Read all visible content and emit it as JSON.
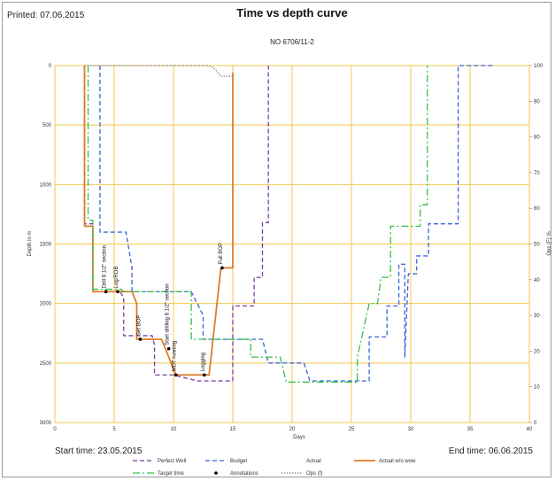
{
  "header": {
    "printed": "Printed: 07.06.2015",
    "title": "Time vs depth curve",
    "subtitle": "NO 6706/11-2"
  },
  "footer": {
    "start_time": "Start time: 23.05.2015",
    "end_time": "End time: 06.06.2015"
  },
  "colors": {
    "perfect_well": "#7a3fa0",
    "budget": "#3a63d8",
    "actual": "#e07b2a",
    "target_time": "#35c04a",
    "ops": "#888888",
    "grid": "#f2c94c",
    "annotation_dot": "#000000"
  },
  "chart_data": {
    "type": "line",
    "title": "Time vs depth curve",
    "subtitle": "NO 6706/11-2",
    "xlabel": "Days",
    "ylabel": "Depth in m",
    "y2label": "Ops (F) %",
    "xlim": [
      0,
      40
    ],
    "ylim": [
      0,
      3000
    ],
    "y_inverted": true,
    "y2lim": [
      0,
      100
    ],
    "x_ticks": [
      0,
      5,
      10,
      15,
      20,
      25,
      30,
      35,
      40
    ],
    "y_ticks": [
      0,
      500,
      1000,
      1500,
      2000,
      2500,
      3000
    ],
    "y2_ticks": [
      0,
      10,
      20,
      30,
      40,
      50,
      60,
      70,
      80,
      90,
      100
    ],
    "grid": true,
    "legend_position": "bottom",
    "legend": [
      {
        "label": "Perfect Well",
        "style": "dash",
        "color_key": "perfect_well"
      },
      {
        "label": "Budget",
        "style": "dash",
        "color_key": "budget"
      },
      {
        "label": "Actual",
        "style": "solid-none",
        "color_key": "actual"
      },
      {
        "label": "Actual w/o wow",
        "style": "solid",
        "color_key": "actual"
      },
      {
        "label": "Target time",
        "style": "dashdot",
        "color_key": "target_time"
      },
      {
        "label": "Annotations",
        "style": "marker",
        "color_key": "annotation_dot"
      },
      {
        "label": "Ops (f)",
        "style": "dot",
        "color_key": "ops"
      }
    ],
    "series": [
      {
        "name": "Perfect Well",
        "color_key": "perfect_well",
        "style": "dash",
        "points": [
          [
            2.5,
            0
          ],
          [
            2.5,
            1330
          ],
          [
            3.2,
            1330
          ],
          [
            3.2,
            1900
          ],
          [
            5.5,
            1900
          ],
          [
            5.8,
            1950
          ],
          [
            5.8,
            2270
          ],
          [
            8.2,
            2270
          ],
          [
            8.4,
            2350
          ],
          [
            8.4,
            2600
          ],
          [
            10,
            2600
          ],
          [
            12,
            2650
          ],
          [
            15,
            2650
          ],
          [
            15,
            2020
          ],
          [
            16.8,
            2020
          ],
          [
            16.8,
            1780
          ],
          [
            17.5,
            1780
          ],
          [
            17.5,
            1320
          ],
          [
            18,
            1320
          ],
          [
            18,
            0
          ]
        ]
      },
      {
        "name": "Budget",
        "color_key": "budget",
        "style": "dash",
        "points": [
          [
            3.8,
            0
          ],
          [
            3.8,
            1400
          ],
          [
            6,
            1400
          ],
          [
            6.5,
            1700
          ],
          [
            6.5,
            1900
          ],
          [
            11.5,
            1900
          ],
          [
            12.5,
            2100
          ],
          [
            12.5,
            2300
          ],
          [
            17.5,
            2300
          ],
          [
            18,
            2500
          ],
          [
            21,
            2500
          ],
          [
            21.5,
            2650
          ],
          [
            26.5,
            2650
          ],
          [
            26.5,
            2280
          ],
          [
            28,
            2280
          ],
          [
            28,
            2020
          ],
          [
            29,
            2020
          ],
          [
            29,
            1670
          ],
          [
            29.5,
            1670
          ],
          [
            29.5,
            2450
          ],
          [
            29.8,
            1750
          ],
          [
            30.5,
            1750
          ],
          [
            30.5,
            1600
          ],
          [
            31.5,
            1600
          ],
          [
            31.5,
            1330
          ],
          [
            34,
            1330
          ],
          [
            34,
            0
          ],
          [
            37,
            0
          ]
        ]
      },
      {
        "name": "Actual w/o wow",
        "color_key": "actual",
        "style": "solid",
        "points": [
          [
            2.5,
            0
          ],
          [
            2.5,
            1350
          ],
          [
            3.2,
            1350
          ],
          [
            3.2,
            1900
          ],
          [
            6.5,
            1900
          ],
          [
            6.9,
            2000
          ],
          [
            6.9,
            2300
          ],
          [
            9,
            2300
          ],
          [
            9.2,
            2350
          ],
          [
            10.2,
            2600
          ],
          [
            13,
            2600
          ],
          [
            14,
            1700
          ],
          [
            15,
            1700
          ],
          [
            15,
            800
          ],
          [
            15,
            60
          ]
        ]
      },
      {
        "name": "Target time",
        "color_key": "target_time",
        "style": "dashdot",
        "points": [
          [
            2.8,
            0
          ],
          [
            2.8,
            1300
          ],
          [
            3.2,
            1300
          ],
          [
            3.2,
            1880
          ],
          [
            5.6,
            1880
          ],
          [
            5.8,
            1900
          ],
          [
            11.5,
            1900
          ],
          [
            11.5,
            2300
          ],
          [
            16.5,
            2300
          ],
          [
            16.5,
            2450
          ],
          [
            19,
            2450
          ],
          [
            19.5,
            2660
          ],
          [
            25.5,
            2660
          ],
          [
            25.5,
            2450
          ],
          [
            26.5,
            2000
          ],
          [
            27.2,
            2000
          ],
          [
            27.5,
            1780
          ],
          [
            28.3,
            1780
          ],
          [
            28.3,
            1350
          ],
          [
            30.8,
            1350
          ],
          [
            30.8,
            1170
          ],
          [
            31.4,
            1170
          ],
          [
            31.4,
            0
          ]
        ]
      },
      {
        "name": "Ops (f)",
        "color_key": "ops",
        "style": "dot",
        "axis": "y2",
        "points": [
          [
            2.5,
            100
          ],
          [
            13,
            100
          ],
          [
            13.5,
            99
          ],
          [
            14,
            97
          ],
          [
            15,
            97
          ]
        ]
      }
    ],
    "annotations": [
      {
        "label": "Drill 8 1/2\" section",
        "x": 4.3,
        "y": 1900
      },
      {
        "label": "Log/ROB",
        "x": 5.3,
        "y": 1900
      },
      {
        "label": "Set BOP",
        "x": 7.2,
        "y": 2300
      },
      {
        "label": "Start drilling 8 1/2\" section",
        "x": 9.6,
        "y": 2380
      },
      {
        "label": "MDT running",
        "x": 10.2,
        "y": 2600
      },
      {
        "label": "Logging",
        "x": 12.6,
        "y": 2600
      },
      {
        "label": "Pull BOP",
        "x": 14.1,
        "y": 1700
      }
    ],
    "ops_labels": []
  }
}
